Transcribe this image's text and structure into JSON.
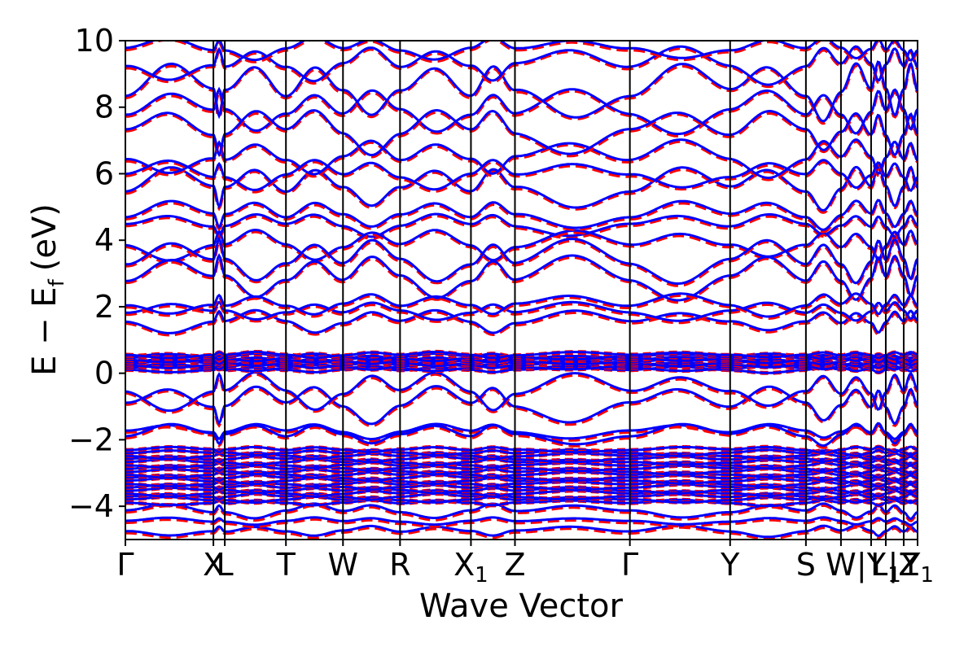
{
  "chart_data": {
    "type": "line",
    "title": "",
    "xlabel": "Wave Vector",
    "ylabel_main": "E − E",
    "ylabel_sub": "f",
    "ylabel_unit": "(eV)",
    "ylim": [
      -5,
      10
    ],
    "yticks": [
      {
        "value": 10,
        "label": "10"
      },
      {
        "value": 8,
        "label": "8"
      },
      {
        "value": 6,
        "label": "6"
      },
      {
        "value": 4,
        "label": "4"
      },
      {
        "value": 2,
        "label": "2"
      },
      {
        "value": 0,
        "label": "0"
      },
      {
        "value": -2,
        "label": "−2"
      },
      {
        "value": -4,
        "label": "−4"
      }
    ],
    "kpoints": [
      {
        "label": "Γ",
        "sub": "",
        "x": 0.0
      },
      {
        "label": "X",
        "sub": "",
        "x": 1.08
      },
      {
        "label": "L",
        "sub": "",
        "x": 1.22
      },
      {
        "label": "T",
        "sub": "",
        "x": 1.97
      },
      {
        "label": "W",
        "sub": "",
        "x": 2.67
      },
      {
        "label": "R",
        "sub": "",
        "x": 3.37
      },
      {
        "label": "X",
        "sub": "1",
        "x": 4.24
      },
      {
        "label": "Z",
        "sub": "",
        "x": 4.78
      },
      {
        "label": "Γ",
        "sub": "",
        "x": 6.19
      },
      {
        "label": "Y",
        "sub": "",
        "x": 7.42
      },
      {
        "label": "S",
        "sub": "",
        "x": 8.35
      },
      {
        "label": "W",
        "sub": "",
        "x": 8.78
      },
      {
        "label": "|Y",
        "sub": "",
        "x": 9.15
      },
      {
        "label": "L",
        "sub": "1",
        "x": 9.33
      },
      {
        "label": "|Z",
        "sub": "",
        "x": 9.55
      },
      {
        "label": "Y",
        "sub": "1",
        "x": 9.72
      }
    ],
    "xlim": [
      0,
      9.72
    ],
    "series": [
      {
        "style": "dashed",
        "color": "#ff0000"
      },
      {
        "style": "solid",
        "color": "#0000ff"
      }
    ],
    "bands": [
      {
        "levels": [
          -4.8,
          -4.2,
          4.4
        ],
        "amps": [
          0.15,
          0.2,
          0.3
        ]
      },
      {
        "levels": [
          -4.5,
          -1.0,
          3.8,
          7.8
        ],
        "amps": [
          0.1,
          0.5,
          0.4,
          0.6
        ]
      },
      {
        "levels": [
          -1.8,
          -0.6,
          2.8,
          8.4
        ],
        "amps": [
          0.2,
          0.5,
          0.6,
          0.8
        ]
      },
      {
        "levels": [
          1.5,
          3.3,
          5.5,
          9.2
        ],
        "amps": [
          0.3,
          0.6,
          0.6,
          0.5
        ]
      },
      {
        "levels": [
          1.8,
          4.7,
          6.4,
          9.7
        ],
        "amps": [
          0.25,
          0.4,
          0.5,
          0.3
        ]
      },
      {
        "levels": [
          -1.9,
          2.0,
          5.9,
          7.2
        ],
        "amps": [
          0.3,
          0.3,
          0.4,
          0.6
        ]
      }
    ],
    "flat_bands": {
      "conduction_low": [
        0.1,
        0.55
      ],
      "valence_low": [
        -3.9,
        -2.3
      ]
    }
  }
}
